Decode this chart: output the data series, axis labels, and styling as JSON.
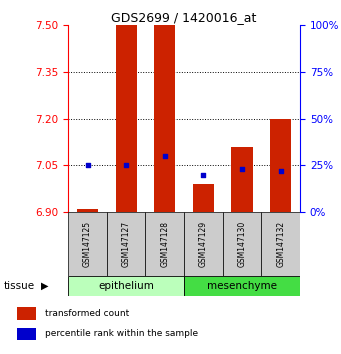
{
  "title": "GDS2699 / 1420016_at",
  "samples": [
    "GSM147125",
    "GSM147127",
    "GSM147128",
    "GSM147129",
    "GSM147130",
    "GSM147132"
  ],
  "transformed_counts": [
    6.91,
    7.5,
    7.5,
    6.99,
    7.11,
    7.2
  ],
  "percentile_ranks": [
    25,
    25,
    30,
    20,
    23,
    22
  ],
  "ylim_left": [
    6.9,
    7.5
  ],
  "ylim_right": [
    0,
    100
  ],
  "yticks_left": [
    6.9,
    7.05,
    7.2,
    7.35,
    7.5
  ],
  "yticks_right": [
    0,
    25,
    50,
    75,
    100
  ],
  "bar_color": "#cc2200",
  "dot_color": "#0000cc",
  "tissue_groups": [
    {
      "label": "epithelium",
      "samples": [
        0,
        1,
        2
      ],
      "color": "#bbffbb"
    },
    {
      "label": "mesenchyme",
      "samples": [
        3,
        4,
        5
      ],
      "color": "#44dd44"
    }
  ],
  "tissue_label": "tissue",
  "legend_items": [
    {
      "label": "transformed count",
      "color": "#cc2200"
    },
    {
      "label": "percentile rank within the sample",
      "color": "#0000cc"
    }
  ],
  "bar_bottom": 6.9,
  "bar_width": 0.55,
  "sample_box_color": "#cccccc",
  "fig_width": 3.41,
  "fig_height": 3.54,
  "dpi": 100
}
